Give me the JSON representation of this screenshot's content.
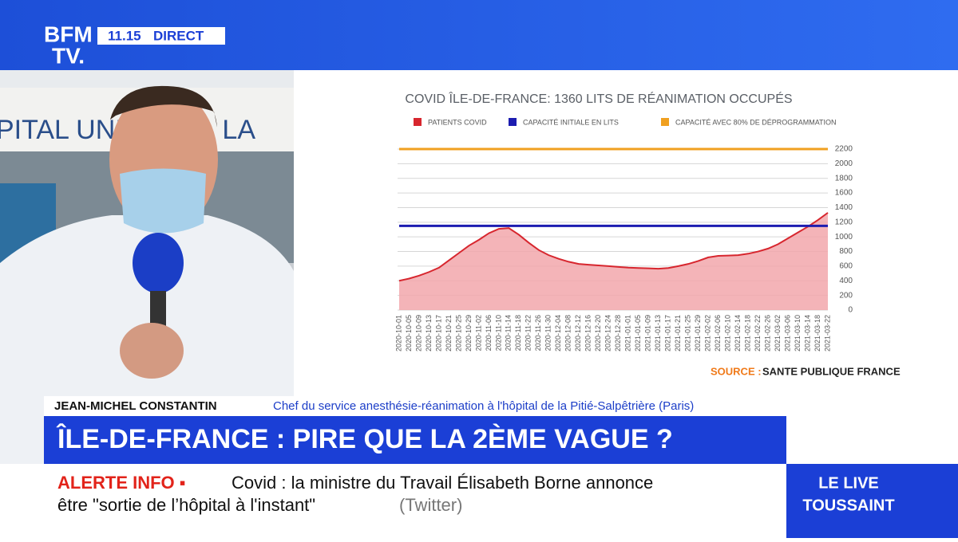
{
  "header": {
    "logo_top": "BFM",
    "logo_bottom": "TV.",
    "time": "11.15",
    "live": "DIRECT"
  },
  "backdrop": {
    "building_sign": "PITAL UNIVE    E  LA"
  },
  "chart_data": {
    "type": "area",
    "title": "COVID ÎLE-DE-FRANCE: 1360 LITS DE RÉANIMATION OCCUPÉS",
    "categories": [
      "2020-10-01",
      "2020-10-05",
      "2020-10-09",
      "2020-10-13",
      "2020-10-17",
      "2020-10-21",
      "2020-10-25",
      "2020-10-29",
      "2020-11-02",
      "2020-11-06",
      "2020-11-10",
      "2020-11-14",
      "2020-11-18",
      "2020-11-22",
      "2020-11-26",
      "2020-11-30",
      "2020-12-04",
      "2020-12-08",
      "2020-12-12",
      "2020-12-16",
      "2020-12-20",
      "2020-12-24",
      "2020-12-28",
      "2021-01-01",
      "2021-01-05",
      "2021-01-09",
      "2021-01-13",
      "2021-01-17",
      "2021-01-21",
      "2021-01-25",
      "2021-01-29",
      "2021-02-02",
      "2021-02-06",
      "2021-02-10",
      "2021-02-14",
      "2021-02-18",
      "2021-02-22",
      "2021-02-26",
      "2021-03-02",
      "2021-03-06",
      "2021-03-10",
      "2021-03-14",
      "2021-03-18",
      "2021-03-22"
    ],
    "series": [
      {
        "name": "PATIENTS COVID",
        "color": "#d7262e",
        "fill": "#f2a7ab",
        "values": [
          400,
          430,
          470,
          520,
          580,
          680,
          780,
          880,
          960,
          1050,
          1110,
          1120,
          1030,
          920,
          820,
          750,
          700,
          660,
          630,
          620,
          610,
          600,
          590,
          580,
          575,
          570,
          565,
          575,
          600,
          630,
          670,
          720,
          740,
          745,
          750,
          770,
          800,
          840,
          900,
          980,
          1060,
          1140,
          1230,
          1330
        ]
      },
      {
        "name": "CAPACITÉ INITIALE EN LITS",
        "color": "#1c1cb0",
        "value": 1150
      },
      {
        "name": "CAPACITÉ AVEC 80% DE DÉPROGRAMMATION",
        "color": "#f0a020",
        "value": 2200
      }
    ],
    "ylim": [
      0,
      2200
    ],
    "yticks": [
      0,
      200,
      400,
      600,
      800,
      1000,
      1200,
      1400,
      1600,
      1800,
      2000,
      2200
    ],
    "grid": true,
    "source_label": "SOURCE :",
    "source": "SANTE PUBLIQUE FRANCE"
  },
  "lower_third": {
    "name": "JEAN-MICHEL CONSTANTIN",
    "role": "Chef du service anesthésie-réanimation à l'hôpital de la Pitié-Salpêtrière (Paris)",
    "headline": "ÎLE-DE-FRANCE : PIRE QUE LA 2ÈME VAGUE ?"
  },
  "ticker": {
    "label": "ALERTE INFO ▪",
    "line1": "Covid : la ministre du Travail Élisabeth Borne annonce",
    "line2": "être \"sortie de l’hôpital à l'instant\"",
    "source": "(Twitter)"
  },
  "show": {
    "line1": "LE LIVE",
    "line2": "TOUSSAINT"
  }
}
